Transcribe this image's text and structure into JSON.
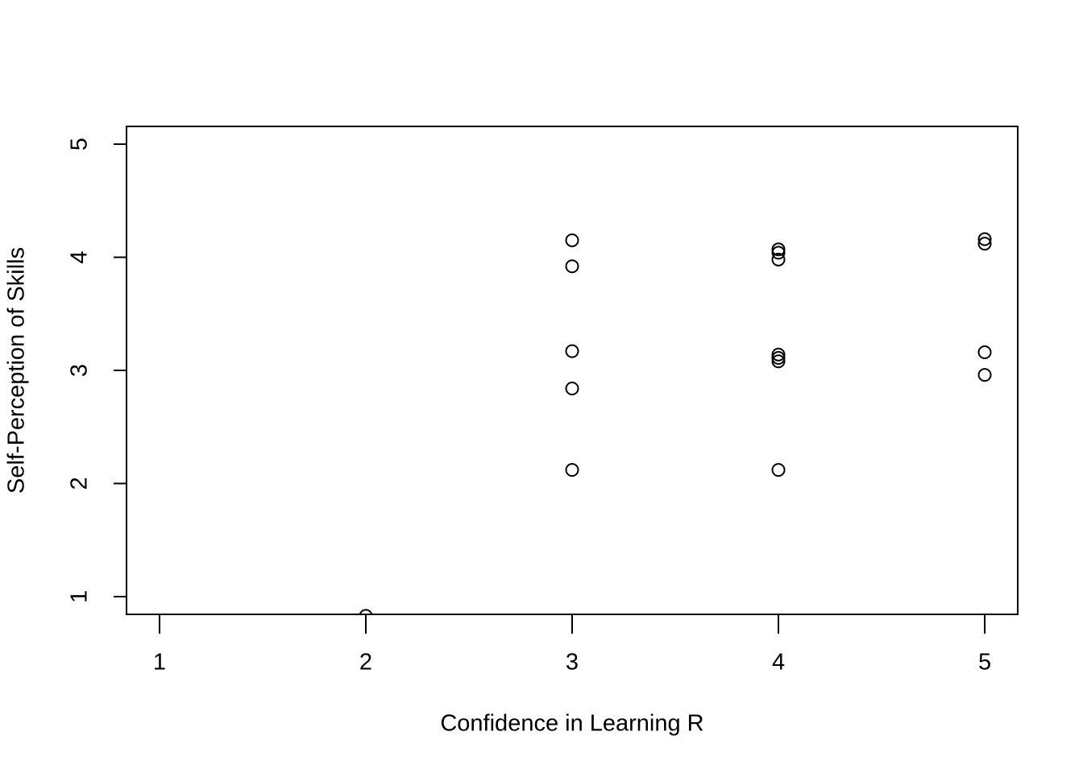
{
  "chart_data": {
    "type": "scatter",
    "x_label": "Confidence in Learning R",
    "y_label": "Self-Perception of Skills",
    "x": [
      2,
      3,
      3,
      3,
      3,
      3,
      4,
      4,
      4,
      4,
      4,
      4,
      4,
      5,
      5,
      5,
      5
    ],
    "y": [
      0.83,
      4.15,
      3.92,
      3.17,
      2.84,
      2.12,
      4.07,
      4.04,
      3.98,
      3.14,
      3.11,
      3.08,
      2.12,
      4.16,
      4.12,
      3.16,
      2.96
    ],
    "color": "#000000",
    "xlim": [
      0.84,
      5.16
    ],
    "ylim": [
      0.843,
      5.157
    ],
    "xticks": [
      1,
      2,
      3,
      4,
      5
    ],
    "yticks": [
      1,
      2,
      3,
      4,
      5
    ]
  }
}
